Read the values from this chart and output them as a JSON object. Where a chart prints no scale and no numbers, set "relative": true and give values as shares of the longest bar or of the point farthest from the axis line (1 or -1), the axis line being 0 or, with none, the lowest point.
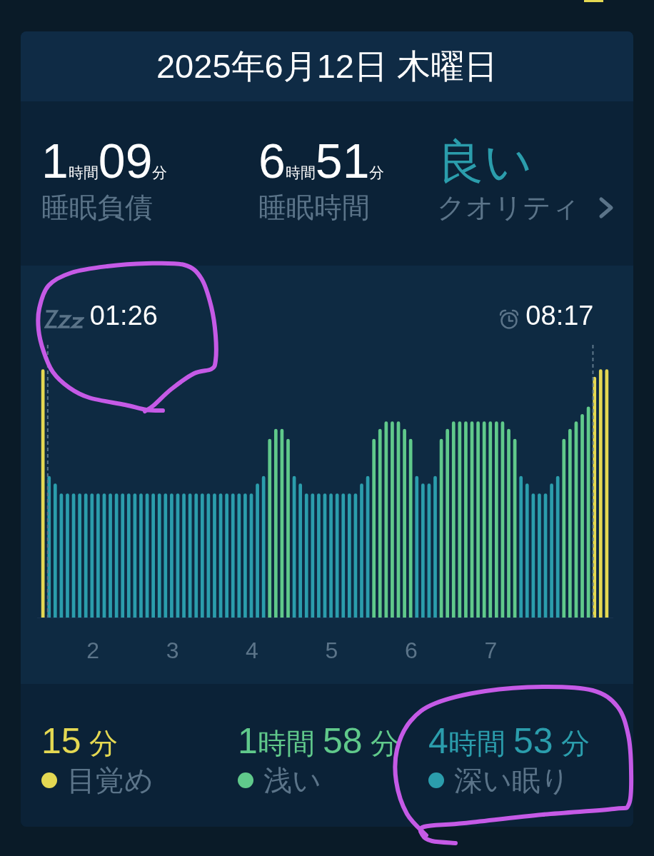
{
  "chart_data": [
    {
      "type": "other",
      "title": "2025年6月12日 木曜日",
      "annotations": [
        "1時間09分",
        "睡眠負債",
        "6時間51分",
        "睡眠時間",
        "良い",
        "クオリティ"
      ]
    },
    {
      "type": "bar",
      "relative": true,
      "legend": "bottom",
      "x": [
        1.373,
        1.45,
        1.527,
        1.604,
        1.681,
        1.758,
        1.835,
        1.912,
        1.989,
        2.066,
        2.143,
        2.22,
        2.297,
        2.374,
        2.451,
        2.528,
        2.605,
        2.682,
        2.759,
        2.836,
        2.913,
        2.99,
        3.067,
        3.144,
        3.221,
        3.298,
        3.375,
        3.452,
        3.529,
        3.606,
        3.683,
        3.76,
        3.837,
        3.914,
        3.991,
        4.068,
        4.145,
        4.222,
        4.299,
        4.376,
        4.453,
        4.53,
        4.607,
        4.684,
        4.761,
        4.838,
        4.915,
        4.992,
        5.069,
        5.146,
        5.223,
        5.3,
        5.377,
        5.454,
        5.531,
        5.608,
        5.685,
        5.762,
        5.839,
        5.916,
        5.993,
        6.07,
        6.147,
        6.224,
        6.301,
        6.378,
        6.455,
        6.532,
        6.609,
        6.686,
        6.763,
        6.84,
        6.917,
        6.994,
        7.071,
        7.148,
        7.225,
        7.302,
        7.379,
        7.456,
        7.533,
        7.61,
        7.687,
        7.764,
        7.841,
        7.918,
        7.995,
        8.072,
        8.149,
        8.226,
        8.303,
        8.38,
        8.457
      ],
      "xlim": [
        1.3,
        8.53
      ],
      "xticks": [
        2,
        3,
        4,
        5,
        6,
        7
      ],
      "series": [
        {
          "name": "目覚め",
          "color": "#e4d852",
          "values": [
            1,
            null,
            null,
            null,
            null,
            null,
            null,
            null,
            null,
            null,
            null,
            null,
            null,
            null,
            null,
            null,
            null,
            null,
            null,
            null,
            null,
            null,
            null,
            null,
            null,
            null,
            null,
            null,
            null,
            null,
            null,
            null,
            null,
            null,
            null,
            null,
            null,
            null,
            null,
            null,
            null,
            null,
            null,
            null,
            null,
            null,
            null,
            null,
            null,
            null,
            null,
            null,
            null,
            null,
            null,
            null,
            null,
            null,
            null,
            null,
            null,
            null,
            null,
            null,
            null,
            null,
            null,
            null,
            null,
            null,
            null,
            null,
            null,
            null,
            null,
            null,
            null,
            null,
            null,
            null,
            null,
            null,
            null,
            null,
            null,
            null,
            null,
            null,
            null,
            null,
            0.97,
            1,
            1
          ]
        },
        {
          "name": "浅い",
          "color": "#60c98b",
          "values": [
            null,
            null,
            null,
            null,
            null,
            null,
            null,
            null,
            null,
            null,
            null,
            null,
            null,
            null,
            null,
            null,
            null,
            null,
            null,
            null,
            null,
            null,
            null,
            null,
            null,
            null,
            null,
            null,
            null,
            null,
            null,
            null,
            null,
            null,
            null,
            null,
            null,
            0.72,
            0.76,
            0.76,
            0.72,
            null,
            null,
            null,
            null,
            null,
            null,
            null,
            null,
            null,
            null,
            null,
            null,
            null,
            0.72,
            0.76,
            0.79,
            0.79,
            0.79,
            0.76,
            0.72,
            null,
            null,
            null,
            null,
            0.72,
            0.76,
            0.79,
            0.79,
            0.79,
            0.79,
            0.79,
            0.79,
            0.79,
            0.79,
            0.79,
            0.76,
            0.72,
            null,
            null,
            null,
            null,
            null,
            null,
            null,
            0.72,
            0.76,
            0.79,
            0.82,
            0.85,
            null,
            null,
            null
          ]
        },
        {
          "name": "深い眠り",
          "color": "#2b9dac",
          "values": [
            null,
            0.57,
            0.54,
            0.5,
            0.5,
            0.5,
            0.5,
            0.5,
            0.5,
            0.5,
            0.5,
            0.5,
            0.5,
            0.5,
            0.5,
            0.5,
            0.5,
            0.5,
            0.5,
            0.5,
            0.5,
            0.5,
            0.5,
            0.5,
            0.5,
            0.5,
            0.5,
            0.5,
            0.5,
            0.5,
            0.5,
            0.5,
            0.5,
            0.5,
            0.5,
            0.54,
            0.57,
            null,
            null,
            null,
            null,
            0.57,
            0.54,
            0.5,
            0.5,
            0.5,
            0.5,
            0.5,
            0.5,
            0.5,
            0.5,
            0.5,
            0.54,
            0.57,
            null,
            null,
            null,
            null,
            null,
            null,
            null,
            0.57,
            0.54,
            0.54,
            0.57,
            null,
            null,
            null,
            null,
            null,
            null,
            null,
            null,
            null,
            null,
            null,
            null,
            null,
            0.57,
            0.54,
            0.5,
            0.5,
            0.5,
            0.54,
            0.57,
            null,
            null,
            null,
            null,
            null,
            null,
            null,
            null
          ]
        }
      ],
      "ref_lines": [
        {
          "axis": "x",
          "value": 1.433,
          "line_style": "dashed",
          "color": "#5d7689"
        },
        {
          "axis": "x",
          "value": 8.283,
          "line_style": "dashed",
          "color": "#5d7689"
        }
      ],
      "annotations": [
        "01:26",
        "08:17",
        "15 分",
        "1時間 58 分",
        "4時間 53 分"
      ]
    }
  ]
}
